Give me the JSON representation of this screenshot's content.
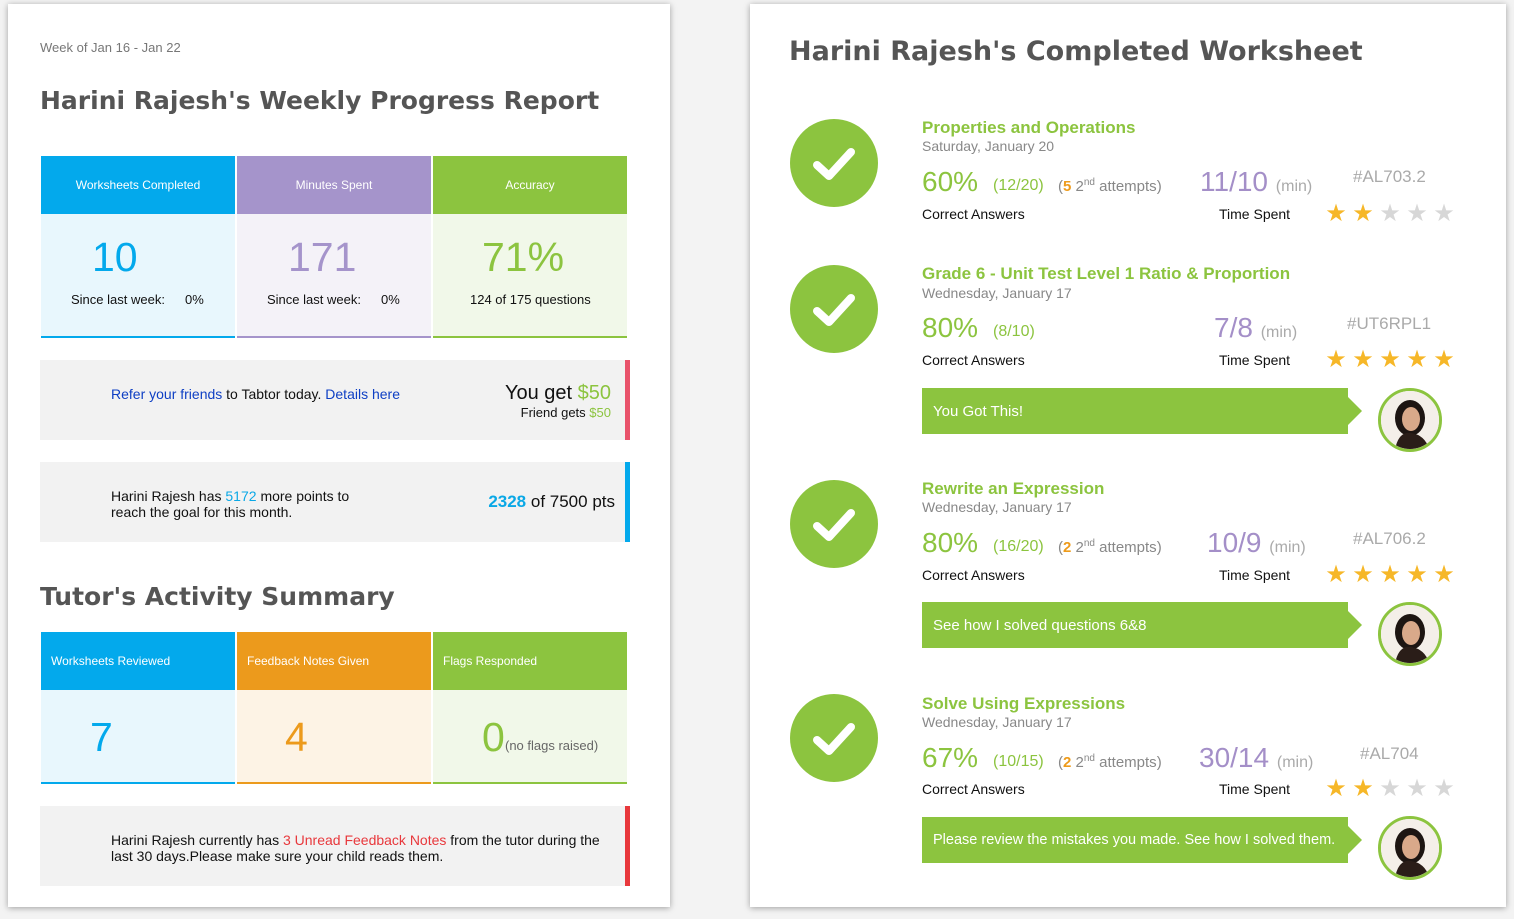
{
  "report": {
    "week_label": "Week of Jan 16 - Jan 22",
    "title": "Harini Rajesh's Weekly Progress Report",
    "stats": [
      {
        "label": "Worksheets Completed",
        "value": "10",
        "sub_label": "Since last week:",
        "sub_value": "0%",
        "color": "#03a9ec"
      },
      {
        "label": "Minutes Spent",
        "value": "171",
        "sub_label": "Since last week:",
        "sub_value": "0%",
        "color": "#a594cb"
      },
      {
        "label": "Accuracy",
        "value": "71%",
        "sub_text": "124 of 175 questions",
        "color": "#8cc43f"
      }
    ],
    "referral": {
      "link_text": "Refer your friends",
      "text": "to Tabtor today.",
      "details_link": "Details here",
      "you_get_label": "You get",
      "you_get_amount": "$50",
      "friend_label": "Friend gets",
      "friend_amount": "$50"
    },
    "points": {
      "text_start": "Harini Rajesh has",
      "points_remaining": "5172",
      "text_end": "more points to reach the goal for this month.",
      "current": "2328",
      "goal_text": "of 7500 pts"
    },
    "tutor_title": "Tutor's Activity Summary",
    "tutor_stats": [
      {
        "label": "Worksheets Reviewed",
        "value": "7",
        "color": "#03a9ec"
      },
      {
        "label": "Feedback Notes Given",
        "value": "4",
        "color": "#ec9a1c"
      },
      {
        "label": "Flags Responded",
        "value": "0",
        "note": "(no flags raised)",
        "color": "#8cc43f"
      }
    ],
    "feedback": {
      "text_start": "Harini Rajesh currently has",
      "unread": "3 Unread Feedback Notes",
      "text_end": "from the tutor during the last 30 days.Please make sure your child reads them."
    }
  },
  "worksheet": {
    "title": "Harini Rajesh's Completed Worksheet",
    "correct_label": "Correct Answers",
    "time_label": "Time Spent",
    "min_label": "(min)",
    "attempts_label": "attempts",
    "items": [
      {
        "title": "Properties and Operations",
        "date": "Saturday, January 20",
        "percent": "60%",
        "fraction": "(12/20)",
        "attempts": "5",
        "ordinal": "2",
        "ordinal_suffix": "nd",
        "time": "11/10",
        "code": "#AL703.2",
        "stars": 2
      },
      {
        "title": "Grade 6 - Unit Test Level 1 Ratio & Proportion",
        "date": "Wednesday, January 17",
        "percent": "80%",
        "fraction": "(8/10)",
        "time": "7/8",
        "code": "#UT6RPL1",
        "stars": 5,
        "bubble": "You Got This!"
      },
      {
        "title": "Rewrite an Expression",
        "date": "Wednesday, January 17",
        "percent": "80%",
        "fraction": "(16/20)",
        "attempts": "2",
        "ordinal": "2",
        "ordinal_suffix": "nd",
        "time": "10/9",
        "code": "#AL706.2",
        "stars": 5,
        "bubble": "See how I solved questions 6&8"
      },
      {
        "title": "Solve Using Expressions",
        "date": "Wednesday, January 17",
        "percent": "67%",
        "fraction": "(10/15)",
        "attempts": "2",
        "ordinal": "2",
        "ordinal_suffix": "nd",
        "time": "30/14",
        "code": "#AL704",
        "stars": 2,
        "bubble": "Please review the mistakes you made. See how I solved them."
      }
    ]
  },
  "icons": {
    "check": "check-icon",
    "star": "star-icon",
    "avatar": "tutor-avatar"
  }
}
